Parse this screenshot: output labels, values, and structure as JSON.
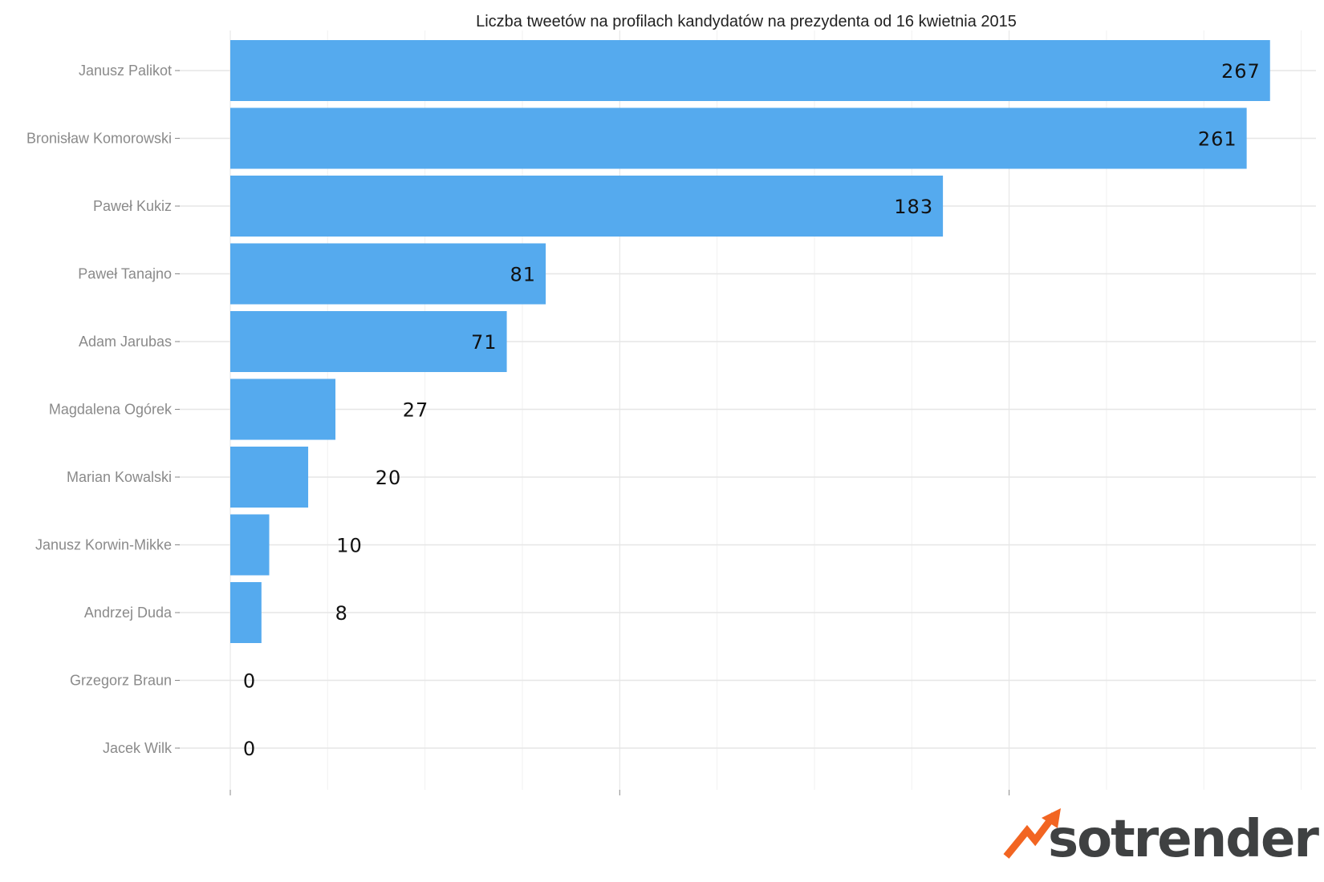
{
  "chart_data": {
    "type": "bar",
    "orientation": "horizontal",
    "title": "Liczba tweetów na profilach kandydatów na prezydenta od 16 kwietnia 2015",
    "categories": [
      "Janusz Palikot",
      "Bronisław Komorowski",
      "Paweł Kukiz",
      "Paweł Tanajno",
      "Adam Jarubas",
      "Magdalena Ogórek",
      "Marian Kowalski",
      "Janusz Korwin-Mikke",
      "Andrzej Duda",
      "Grzegorz Braun",
      "Jacek Wilk"
    ],
    "values": [
      267,
      261,
      183,
      81,
      71,
      27,
      20,
      10,
      8,
      0,
      0
    ],
    "value_labels": [
      "267",
      "261",
      "183",
      "81",
      "71",
      "27",
      "20",
      "10",
      "8",
      "0",
      "0"
    ],
    "xlim": [
      0,
      280
    ],
    "grid": true,
    "x_tick_labels_shown": false,
    "bar_color": "#55aaee"
  },
  "branding": {
    "logo_text": "sotrender",
    "logo_text_color": "#3f4142",
    "logo_accent_color": "#f26522"
  }
}
